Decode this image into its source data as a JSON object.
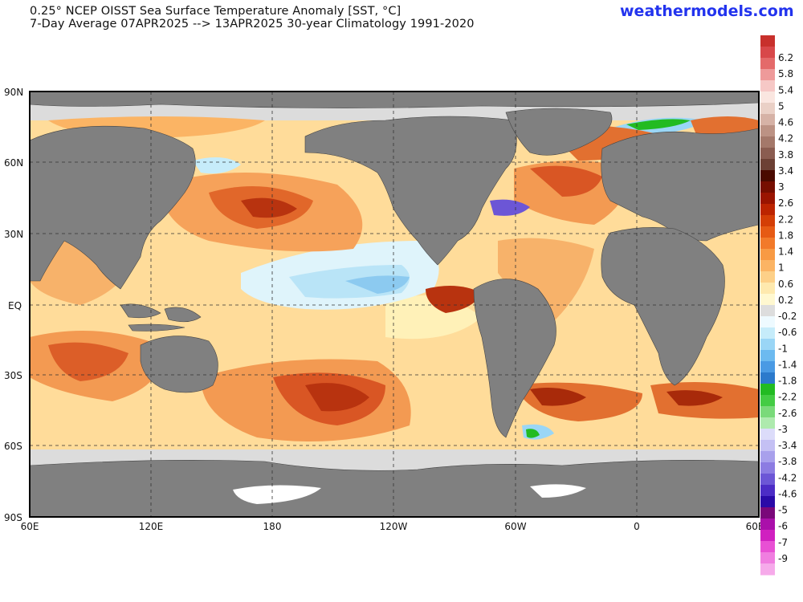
{
  "header": {
    "title_line1": "0.25° NCEP OISST Sea Surface Temperature Anomaly [SST, °C]",
    "title_line2": "7-Day Average 07APR2025 --> 13APR2025   30-year Climatology 1991-2020",
    "brand": "weathermodels.com"
  },
  "map": {
    "lat_labels": [
      "90N",
      "60N",
      "30N",
      "EQ",
      "30S",
      "60S",
      "90S"
    ],
    "lon_labels": [
      "60E",
      "120E",
      "180",
      "120W",
      "60W",
      "0",
      "60E"
    ],
    "colors": {
      "land": "#808080",
      "ice": "#ffffff",
      "near_zero": "#dcdcdc",
      "ocean_warm": "#ffd58a",
      "gridline": "#333333"
    }
  },
  "colorbar": {
    "labels": [
      "6.2",
      "5.8",
      "5.4",
      "5",
      "4.6",
      "4.2",
      "3.8",
      "3.4",
      "3",
      "2.6",
      "2.2",
      "1.8",
      "1.4",
      "1",
      "0.6",
      "0.2",
      "-0.2",
      "-0.6",
      "-1",
      "-1.4",
      "-1.8",
      "-2.2",
      "-2.6",
      "-3",
      "-3.4",
      "-3.8",
      "-4.2",
      "-4.6",
      "-5",
      "-6",
      "-7",
      "-9"
    ],
    "colors": [
      "#c8302c",
      "#d8484a",
      "#e46a6a",
      "#ee9a9a",
      "#f6c8c6",
      "#fae6e0",
      "#ead0c6",
      "#d6b2a6",
      "#bc9284",
      "#a4786a",
      "#8a5c50",
      "#6c4034",
      "#4a0a00",
      "#760e00",
      "#9a1400",
      "#bc2400",
      "#d43e06",
      "#e65a14",
      "#f27a2a",
      "#f89a44",
      "#fbb464",
      "#fdd088",
      "#fee9ae",
      "#fff8d0",
      "#dddddd",
      "#eefaff",
      "#c6ecfa",
      "#9ad6f6",
      "#6cbaf0",
      "#4a9ae4",
      "#2c7acc",
      "#22bb22",
      "#44cc44",
      "#7ada7a",
      "#aeeaae",
      "#dcdcfa",
      "#c4c0f4",
      "#a8a0ec",
      "#8c7ce2",
      "#6c56d6",
      "#4c2cc6",
      "#2a0aa8",
      "#7a087a",
      "#aa10aa",
      "#d020c0",
      "#e850d4",
      "#f07ee0",
      "#f6aaea"
    ]
  }
}
